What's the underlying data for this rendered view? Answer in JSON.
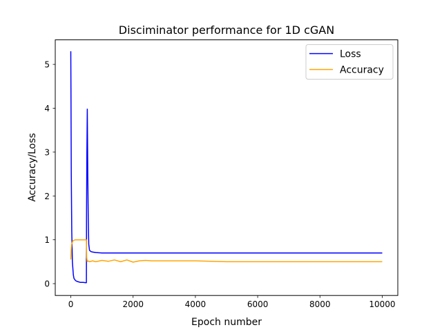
{
  "chart_data": {
    "type": "line",
    "title": "Disciminator performance for 1D cGAN",
    "xlabel": "Epoch number",
    "ylabel": "Accuracy/Loss",
    "xlim": [
      -500,
      10500
    ],
    "ylim": [
      -0.27,
      5.56
    ],
    "xticks": [
      0,
      2000,
      4000,
      6000,
      8000,
      10000
    ],
    "yticks": [
      0,
      1,
      2,
      3,
      4,
      5
    ],
    "grid": false,
    "legend_position": "upper right",
    "series": [
      {
        "name": "Loss",
        "color": "#0000ff",
        "x": [
          0,
          5,
          15,
          30,
          50,
          80,
          100,
          150,
          200,
          250,
          300,
          400,
          480,
          500,
          505,
          515,
          530,
          545,
          560,
          575,
          600,
          650,
          700,
          800,
          1000,
          1500,
          2000,
          3000,
          4000,
          5000,
          6000,
          7000,
          8000,
          9000,
          10000
        ],
        "y": [
          5.3,
          4.2,
          2.5,
          1.2,
          0.5,
          0.2,
          0.12,
          0.07,
          0.05,
          0.04,
          0.03,
          0.03,
          0.02,
          0.02,
          1.5,
          3.0,
          3.98,
          2.5,
          1.5,
          0.9,
          0.76,
          0.73,
          0.72,
          0.71,
          0.7,
          0.7,
          0.7,
          0.7,
          0.7,
          0.7,
          0.7,
          0.7,
          0.7,
          0.7,
          0.7
        ]
      },
      {
        "name": "Accuracy",
        "color": "#ffa500",
        "x": [
          0,
          10,
          30,
          60,
          100,
          150,
          200,
          300,
          400,
          500,
          510,
          530,
          550,
          600,
          700,
          800,
          1000,
          1200,
          1400,
          1600,
          1800,
          2000,
          2200,
          2400,
          2600,
          3000,
          3500,
          4000,
          4500,
          5000,
          6000,
          7000,
          8000,
          9000,
          10000
        ],
        "y": [
          0.55,
          0.75,
          0.9,
          0.97,
          0.99,
          1.0,
          1.0,
          1.0,
          1.0,
          1.0,
          0.6,
          0.5,
          0.52,
          0.5,
          0.52,
          0.5,
          0.53,
          0.51,
          0.54,
          0.5,
          0.54,
          0.49,
          0.52,
          0.53,
          0.52,
          0.52,
          0.52,
          0.52,
          0.51,
          0.5,
          0.5,
          0.5,
          0.5,
          0.5,
          0.5
        ]
      }
    ]
  }
}
